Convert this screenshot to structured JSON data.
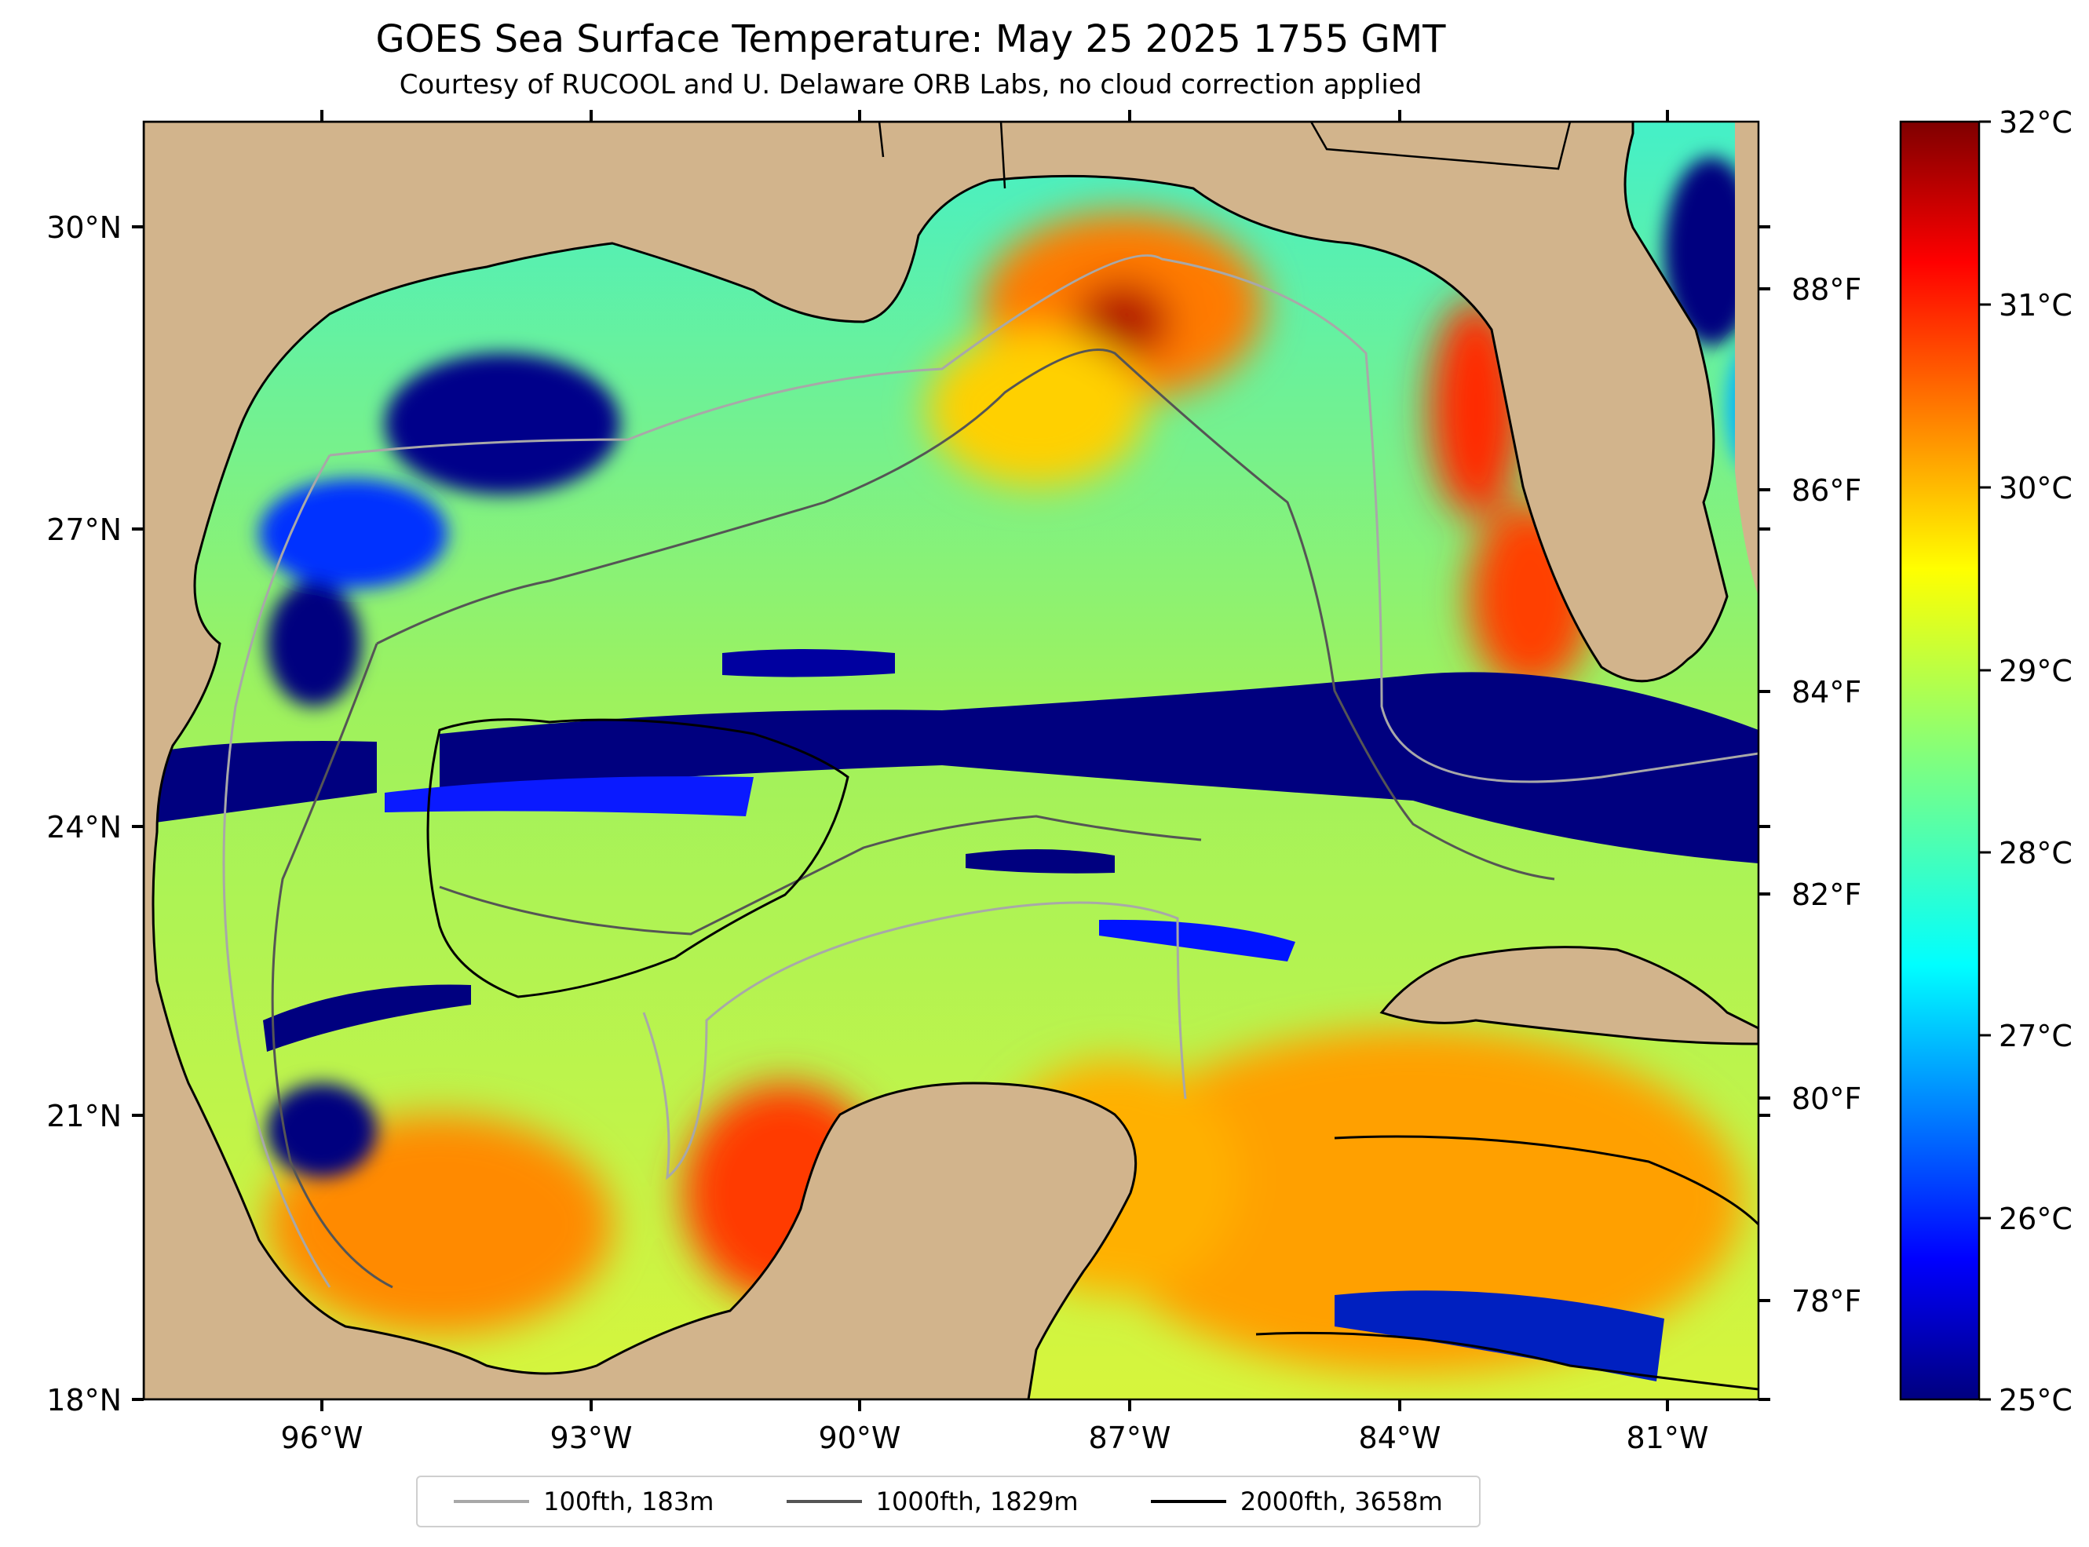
{
  "title": "GOES Sea Surface Temperature: May 25 2025 1755 GMT",
  "subtitle": "Courtesy of RUCOOL and U. Delaware ORB Labs, no cloud correction applied",
  "lat_labels": [
    "30°N",
    "27°N",
    "24°N",
    "21°N",
    "18°N"
  ],
  "lon_labels": [
    "96°W",
    "93°W",
    "90°W",
    "87°W",
    "84°W",
    "81°W"
  ],
  "fahrenheit_labels": [
    "88°F",
    "86°F",
    "84°F",
    "82°F",
    "80°F",
    "78°F"
  ],
  "colorbar_labels": [
    "32°C",
    "31°C",
    "30°C",
    "29°C",
    "28°C",
    "27°C",
    "26°C",
    "25°C"
  ],
  "colorbar": {
    "min_c": 25,
    "max_c": 32,
    "colormap": "jet"
  },
  "legend": [
    {
      "label": "100fth, 183m",
      "color": "#a8a8a8"
    },
    {
      "label": "1000fth, 1829m",
      "color": "#555555"
    },
    {
      "label": "2000fth, 3658m",
      "color": "#000000"
    }
  ],
  "colors": {
    "land": "#d2b48c",
    "cloud": "#00007f"
  }
}
